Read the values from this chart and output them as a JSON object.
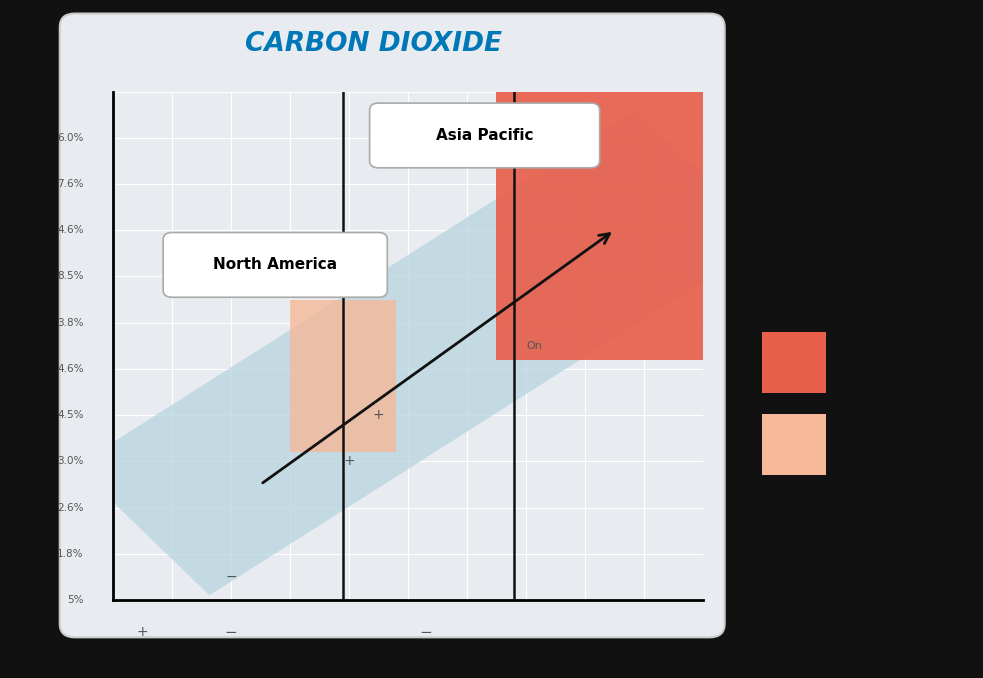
{
  "title": "CARBON DIOXIDE",
  "title_color": "#0077b6",
  "title_fontsize": 19,
  "fig_bg_color": "#f5f5f5",
  "chart_bg_color": "#e8ecf0",
  "chart_border_color": "#cccccc",
  "band_color": "#b8d4df",
  "band_alpha": 0.75,
  "region1_color": "#e8604c",
  "region1_alpha": 0.92,
  "region2_color": "#f5b898",
  "region2_alpha": 0.8,
  "arrow_color": "#111111",
  "vline_color": "#111111",
  "grid_color": "#ffffff",
  "tick_color": "#555555",
  "pm_color": "#555555",
  "legend_colors": [
    "#e8604c",
    "#f5b898"
  ],
  "right_bg": "#111111",
  "ytick_labels": [
    "6.0%",
    "7.6%",
    "4.6%",
    "8.5%",
    "3.8%",
    "4.6%",
    "4.5%",
    "3.0%",
    "2.6%",
    "1.8%",
    "5%"
  ],
  "ytick_positions": [
    10,
    9,
    8,
    7,
    6,
    5,
    4,
    3,
    2,
    1,
    0
  ],
  "xlim": [
    0,
    10
  ],
  "ylim": [
    0,
    11
  ]
}
